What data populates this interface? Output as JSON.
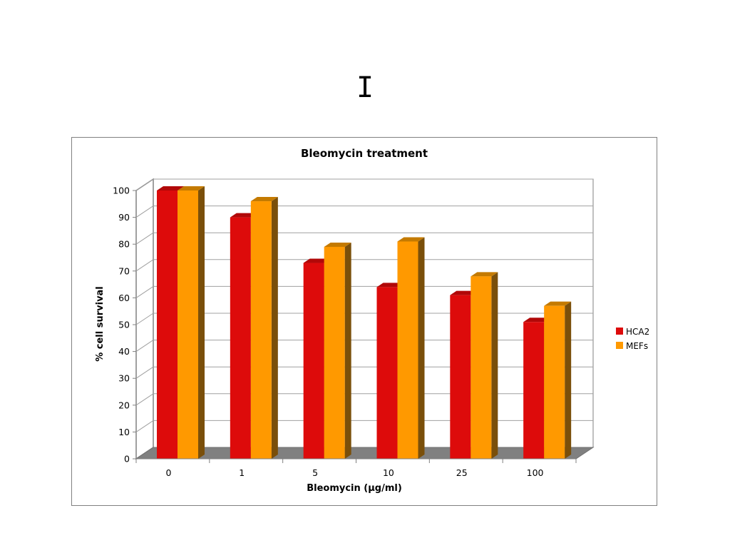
{
  "page": {
    "panel_letter": "I"
  },
  "chart_data": {
    "type": "bar",
    "title": "Bleomycin treatment",
    "xlabel": "Bleomycin (µg/ml)",
    "ylabel": "% cell survival",
    "categories": [
      "0",
      "1",
      "5",
      "10",
      "25",
      "100"
    ],
    "series": [
      {
        "name": "HCA2",
        "values": [
          100,
          90,
          73,
          64,
          61,
          51
        ],
        "color": "#dd0b0b",
        "side_color": "#8c0505",
        "top_color": "#b10808"
      },
      {
        "name": "MEFs",
        "values": [
          100,
          96,
          79,
          81,
          68,
          57
        ],
        "color": "#ff9900",
        "side_color": "#7a4f0a",
        "top_color": "#c47a00"
      }
    ],
    "ylim": [
      0,
      100
    ],
    "yticks": [
      0,
      10,
      20,
      30,
      40,
      50,
      60,
      70,
      80,
      90,
      100
    ],
    "grid": true,
    "legend": "right",
    "style": "3d-clustered-column"
  }
}
